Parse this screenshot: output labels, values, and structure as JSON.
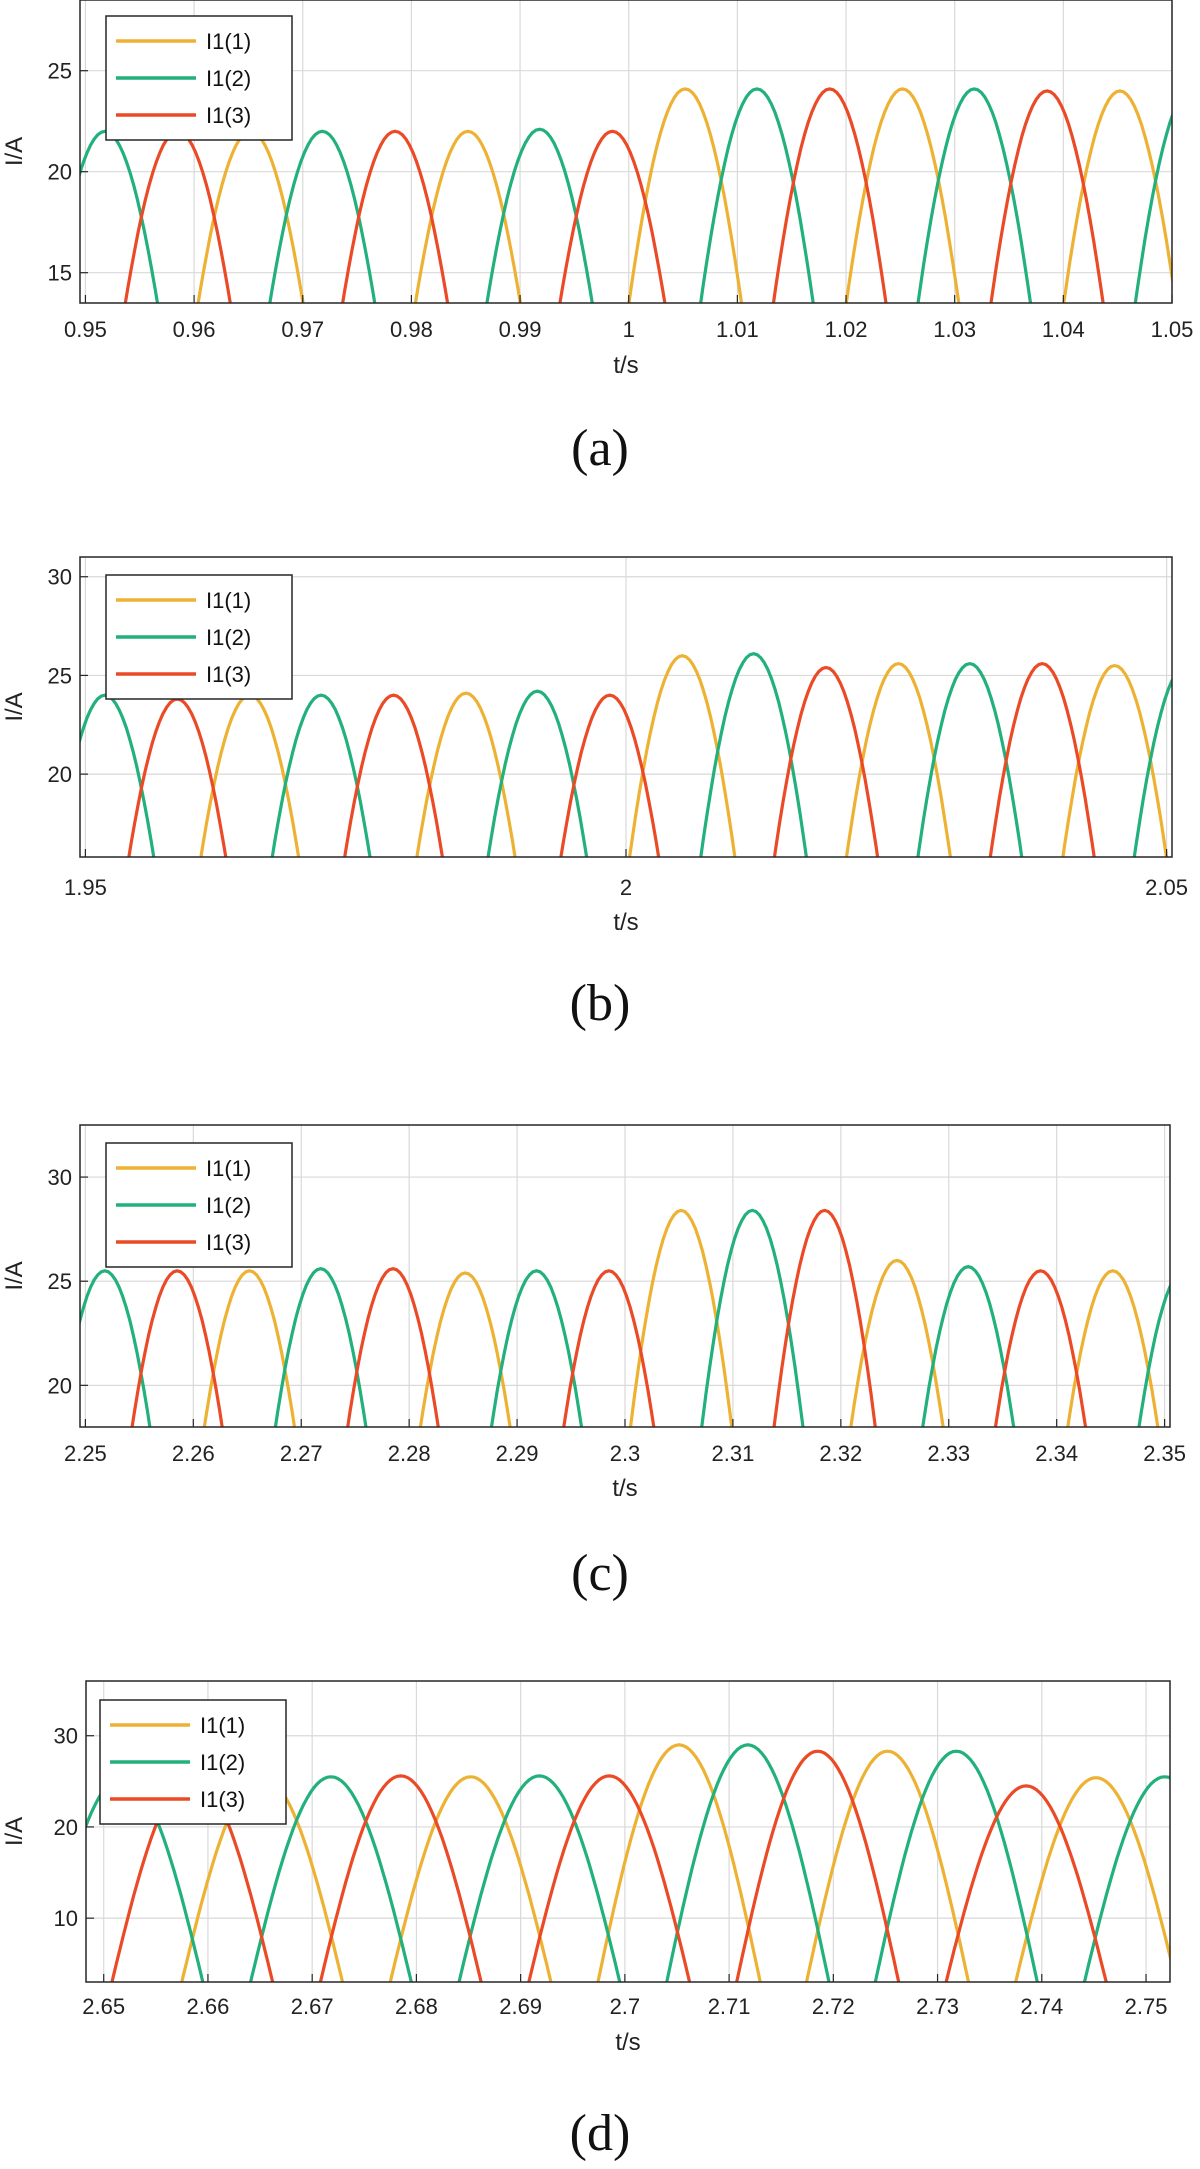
{
  "colors": {
    "I1(1)": "#EDB233",
    "I1(2)": "#22B07C",
    "I1(3)": "#EB4A27"
  },
  "chart_data": [
    {
      "type": "line",
      "caption": "(a)",
      "xlabel": "t/s",
      "ylabel": "I/A",
      "xlim": [
        0.9495,
        1.05
      ],
      "ylim": [
        13.5,
        28.5
      ],
      "xticks": [
        0.95,
        0.96,
        0.97,
        0.98,
        0.99,
        1,
        1.01,
        1.02,
        1.03,
        1.04,
        1.05
      ],
      "xtick_labels": [
        "0.95",
        "0.96",
        "0.97",
        "0.98",
        "0.99",
        "1",
        "1.01",
        "1.02",
        "1.03",
        "1.04",
        "1.05"
      ],
      "yticks": [
        15,
        20,
        25
      ],
      "ytick_labels": [
        "15",
        "20",
        "25"
      ],
      "grid": true,
      "legend_position": "top-left",
      "series": [
        {
          "name": "I1(1)",
          "peaks": [
            [
              0.9652,
              22.0
            ],
            [
              0.9852,
              22.0
            ],
            [
              1.0052,
              24.1
            ],
            [
              1.0252,
              24.1
            ],
            [
              1.0452,
              24.0
            ]
          ]
        },
        {
          "name": "I1(2)",
          "peaks": [
            [
              0.9518,
              22.0
            ],
            [
              0.9718,
              22.0
            ],
            [
              0.9918,
              22.1
            ],
            [
              1.0118,
              24.1
            ],
            [
              1.0318,
              24.1
            ],
            [
              1.0518,
              24.1
            ]
          ]
        },
        {
          "name": "I1(3)",
          "peaks": [
            [
              0.9585,
              22.0
            ],
            [
              0.9785,
              22.0
            ],
            [
              0.9985,
              22.0
            ],
            [
              1.0185,
              24.1
            ],
            [
              1.0385,
              24.0
            ]
          ]
        }
      ]
    },
    {
      "type": "line",
      "caption": "(b)",
      "xlabel": "t/s",
      "ylabel": "I/A",
      "xlim": [
        1.9495,
        2.0505
      ],
      "ylim": [
        15.8,
        31.0
      ],
      "xticks": [
        1.95,
        2,
        2.05
      ],
      "xtick_labels": [
        "1.95",
        "2",
        "2.05"
      ],
      "yticks": [
        20,
        25,
        30
      ],
      "ytick_labels": [
        "20",
        "25",
        "30"
      ],
      "grid": true,
      "legend_position": "top-left",
      "series": [
        {
          "name": "I1(1)",
          "peaks": [
            [
              1.9652,
              24.0
            ],
            [
              1.9852,
              24.1
            ],
            [
              2.0052,
              26.0
            ],
            [
              2.0252,
              25.6
            ],
            [
              2.0452,
              25.5
            ]
          ]
        },
        {
          "name": "I1(2)",
          "peaks": [
            [
              1.9518,
              24.0
            ],
            [
              1.9718,
              24.0
            ],
            [
              1.9918,
              24.2
            ],
            [
              2.0118,
              26.1
            ],
            [
              2.0318,
              25.6
            ],
            [
              2.0518,
              25.5
            ]
          ]
        },
        {
          "name": "I1(3)",
          "peaks": [
            [
              1.9585,
              23.8
            ],
            [
              1.9785,
              24.0
            ],
            [
              1.9985,
              24.0
            ],
            [
              2.0185,
              25.4
            ],
            [
              2.0385,
              25.6
            ]
          ]
        }
      ]
    },
    {
      "type": "line",
      "caption": "(c)",
      "xlabel": "t/s",
      "ylabel": "I/A",
      "xlim": [
        2.2495,
        2.3505
      ],
      "ylim": [
        18.0,
        32.5
      ],
      "xticks": [
        2.25,
        2.26,
        2.27,
        2.28,
        2.29,
        2.3,
        2.31,
        2.32,
        2.33,
        2.34,
        2.35
      ],
      "xtick_labels": [
        "2.25",
        "2.26",
        "2.27",
        "2.28",
        "2.29",
        "2.3",
        "2.31",
        "2.32",
        "2.33",
        "2.34",
        "2.35"
      ],
      "yticks": [
        20,
        25,
        30
      ],
      "ytick_labels": [
        "20",
        "25",
        "30"
      ],
      "grid": true,
      "legend_position": "top-left",
      "series": [
        {
          "name": "I1(1)",
          "peaks": [
            [
              2.2652,
              25.5
            ],
            [
              2.2852,
              25.4
            ],
            [
              2.3052,
              28.4
            ],
            [
              2.3252,
              26.0
            ],
            [
              2.3452,
              25.5
            ]
          ]
        },
        {
          "name": "I1(2)",
          "peaks": [
            [
              2.2518,
              25.5
            ],
            [
              2.2718,
              25.6
            ],
            [
              2.2918,
              25.5
            ],
            [
              2.3118,
              28.4
            ],
            [
              2.3318,
              25.7
            ],
            [
              2.3518,
              25.5
            ]
          ]
        },
        {
          "name": "I1(3)",
          "peaks": [
            [
              2.2585,
              25.5
            ],
            [
              2.2785,
              25.6
            ],
            [
              2.2985,
              25.5
            ],
            [
              2.3185,
              28.4
            ],
            [
              2.3385,
              25.5
            ]
          ]
        }
      ]
    },
    {
      "type": "line",
      "caption": "(d)",
      "xlabel": "t/s",
      "ylabel": "I/A",
      "xlim": [
        2.6483,
        2.7523
      ],
      "ylim": [
        3.0,
        36.0
      ],
      "xticks": [
        2.65,
        2.66,
        2.67,
        2.68,
        2.69,
        2.7,
        2.71,
        2.72,
        2.73,
        2.74,
        2.75
      ],
      "xtick_labels": [
        "2.65",
        "2.66",
        "2.67",
        "2.68",
        "2.69",
        "2.7",
        "2.71",
        "2.72",
        "2.73",
        "2.74",
        "2.75"
      ],
      "yticks": [
        10,
        20,
        30
      ],
      "ytick_labels": [
        "10",
        "20",
        "30"
      ],
      "grid": true,
      "legend_position": "top-left",
      "series": [
        {
          "name": "I1(1)",
          "peaks": [
            [
              2.6652,
              25.5
            ],
            [
              2.6852,
              25.5
            ],
            [
              2.7052,
              29.0
            ],
            [
              2.7252,
              28.3
            ],
            [
              2.7452,
              25.4
            ]
          ]
        },
        {
          "name": "I1(2)",
          "peaks": [
            [
              2.6518,
              25.5
            ],
            [
              2.6718,
              25.5
            ],
            [
              2.6918,
              25.6
            ],
            [
              2.7118,
              29.0
            ],
            [
              2.7318,
              28.3
            ],
            [
              2.7518,
              25.5
            ]
          ]
        },
        {
          "name": "I1(3)",
          "peaks": [
            [
              2.6585,
              25.5
            ],
            [
              2.6785,
              25.6
            ],
            [
              2.6985,
              25.6
            ],
            [
              2.7185,
              28.3
            ],
            [
              2.7385,
              24.5
            ]
          ]
        }
      ]
    }
  ]
}
